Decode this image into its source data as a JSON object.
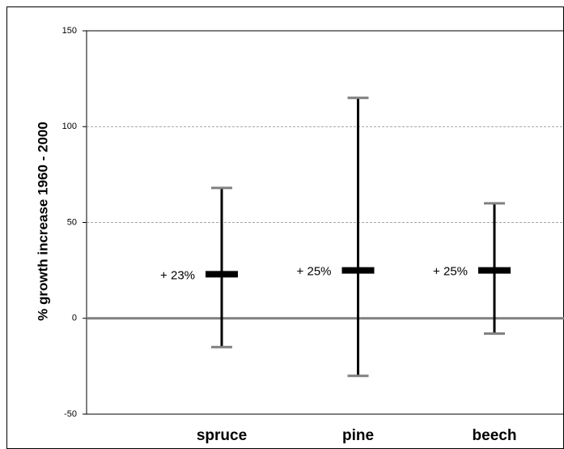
{
  "chart_data": {
    "type": "range",
    "y_label": "% growth increase 1960 - 2000",
    "categories": [
      "spruce",
      "pine",
      "beech"
    ],
    "values": [
      23,
      25,
      25
    ],
    "value_labels": [
      "+ 23%",
      "+ 25%",
      "+ 25%"
    ],
    "low": [
      -15,
      -30,
      -8
    ],
    "high": [
      68,
      115,
      60
    ],
    "color": "#000000",
    "whisker_color": "#808080",
    "ylim": [
      -50,
      150
    ],
    "yticks": [
      -50,
      0,
      50,
      100,
      150
    ],
    "grid": true
  }
}
